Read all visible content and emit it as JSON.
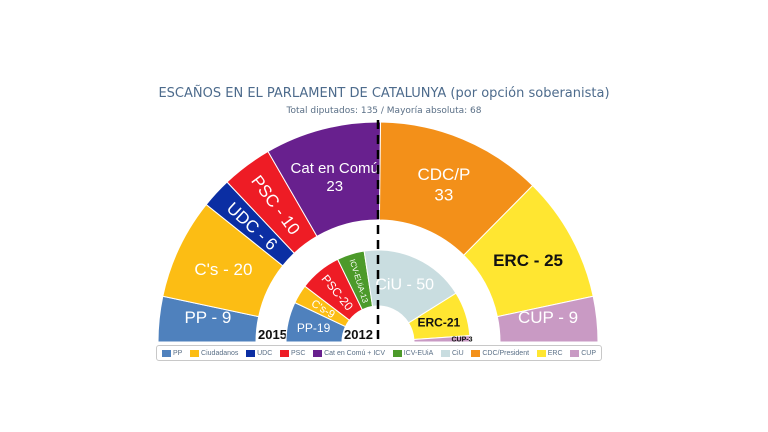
{
  "chart_data": {
    "type": "parliament",
    "title": "ESCAÑOS EN EL PARLAMENT DE CATALUNYA (por opción soberanista)",
    "subtitle": "Total diputados: 135 / Mayoría absoluta: 68",
    "total_seats": 135,
    "majority": 68,
    "rings": [
      {
        "year": "2015",
        "series": [
          {
            "party": "PP",
            "seats": 9,
            "label": "PP - 9",
            "color": "#4f81bd"
          },
          {
            "party": "Ciudadanos",
            "seats": 20,
            "label": "C's - 20",
            "color": "#fcbd14"
          },
          {
            "party": "UDC",
            "seats": 6,
            "label": "UDC - 6",
            "color": "#0b2ea3"
          },
          {
            "party": "PSC",
            "seats": 10,
            "label": "PSC - 10",
            "color": "#ee1c25"
          },
          {
            "party": "Cat en Comú + ICV",
            "seats": 23,
            "label": "Cat en Comú\n23",
            "color": "#68208e"
          },
          {
            "party": "CDC/President",
            "seats": 33,
            "label": "CDC/P\n33",
            "color": "#f39019"
          },
          {
            "party": "ERC",
            "seats": 25,
            "label": "ERC - 25",
            "color": "#ffe631"
          },
          {
            "party": "CUP",
            "seats": 9,
            "label": "CUP - 9",
            "color": "#c99ac4"
          }
        ]
      },
      {
        "year": "2012",
        "series": [
          {
            "party": "PP",
            "seats": 19,
            "label": "PP-19",
            "color": "#4f81bd"
          },
          {
            "party": "Ciudadanos",
            "seats": 9,
            "label": "C's-9",
            "color": "#fcbd14"
          },
          {
            "party": "PSC",
            "seats": 20,
            "label": "PSC-20",
            "color": "#ee1c25"
          },
          {
            "party": "ICV-EUiA",
            "seats": 13,
            "label": "ICV-EUiA-13",
            "color": "#4c9a2a"
          },
          {
            "party": "CiU",
            "seats": 50,
            "label": "CiU - 50",
            "color": "#c9dde0"
          },
          {
            "party": "ERC",
            "seats": 21,
            "label": "ERC-21",
            "color": "#ffe631"
          },
          {
            "party": "CUP",
            "seats": 3,
            "label": "CUP-3",
            "color": "#c99ac4"
          }
        ]
      }
    ],
    "legend": [
      {
        "label": "PP",
        "color": "#4f81bd"
      },
      {
        "label": "Ciudadanos",
        "color": "#fcbd14"
      },
      {
        "label": "UDC",
        "color": "#0b2ea3"
      },
      {
        "label": "PSC",
        "color": "#ee1c25"
      },
      {
        "label": "Cat en Comú + ICV",
        "color": "#68208e"
      },
      {
        "label": "ICV-EUiA",
        "color": "#4c9a2a"
      },
      {
        "label": "CiU",
        "color": "#c9dde0"
      },
      {
        "label": "CDC/President",
        "color": "#f39019"
      },
      {
        "label": "ERC",
        "color": "#ffe631"
      },
      {
        "label": "CUP",
        "color": "#c99ac4"
      }
    ],
    "legend_placement": "bottom"
  }
}
